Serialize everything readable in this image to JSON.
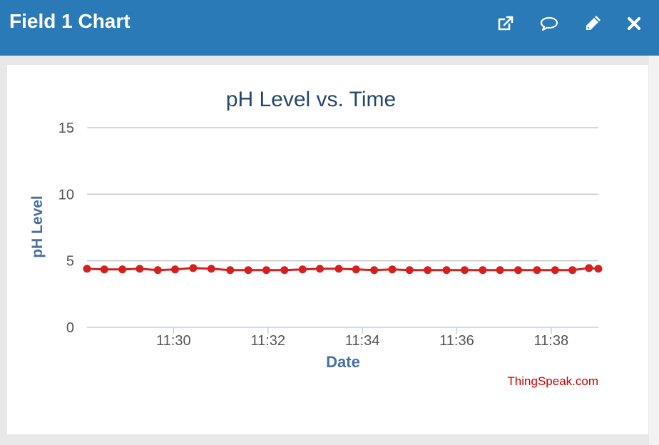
{
  "header": {
    "title": "Field 1 Chart",
    "icons": [
      "external-link-icon",
      "comment-icon",
      "pencil-icon",
      "close-icon"
    ]
  },
  "credit": "ThingSpeak.com",
  "colors": {
    "header_bg": "#2a7ab8",
    "series": "#d62020",
    "title": "#27466b",
    "axis_label": "#4a6fa0",
    "credit": "#cc0000"
  },
  "chart_data": {
    "type": "line",
    "title": "pH Level vs. Time",
    "xlabel": "Date",
    "ylabel": "pH Level",
    "ylim": [
      0,
      15
    ],
    "yticks": [
      0,
      5,
      10,
      15
    ],
    "xlim": [
      "11:28:10",
      "11:39:00"
    ],
    "xticks": [
      "11:30",
      "11:32",
      "11:34",
      "11:36",
      "11:38"
    ],
    "grid": true,
    "legend": "none",
    "series": [
      {
        "x": [
          "11:28:10",
          "11:28:32",
          "11:28:55",
          "11:29:17",
          "11:29:40",
          "11:30:02",
          "11:30:25",
          "11:30:48",
          "11:31:12",
          "11:31:35",
          "11:31:58",
          "11:32:21",
          "11:32:44",
          "11:33:06",
          "11:33:30",
          "11:33:52",
          "11:34:15",
          "11:34:38",
          "11:35:00",
          "11:35:23",
          "11:35:47",
          "11:36:10",
          "11:36:33",
          "11:36:55",
          "11:37:18",
          "11:37:42",
          "11:38:05",
          "11:38:27",
          "11:38:48",
          "11:39:00"
        ],
        "values": [
          4.4,
          4.35,
          4.35,
          4.4,
          4.3,
          4.35,
          4.45,
          4.4,
          4.3,
          4.3,
          4.3,
          4.3,
          4.35,
          4.4,
          4.4,
          4.35,
          4.3,
          4.35,
          4.3,
          4.3,
          4.3,
          4.3,
          4.3,
          4.3,
          4.3,
          4.3,
          4.3,
          4.3,
          4.45,
          4.4
        ]
      }
    ]
  }
}
